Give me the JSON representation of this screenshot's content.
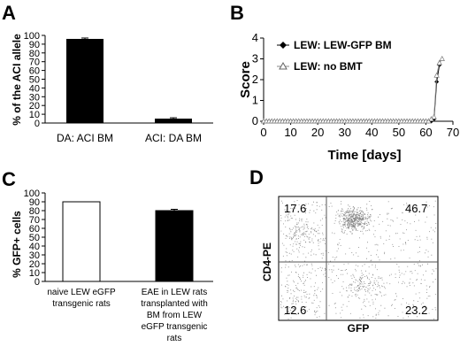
{
  "panel_labels": {
    "a": "A",
    "b": "B",
    "c": "C",
    "d": "D"
  },
  "chart_data": [
    {
      "panel": "A",
      "type": "bar",
      "ylabel": "% of the ACI allele",
      "ylim": [
        0,
        100
      ],
      "yticks": [
        0,
        10,
        20,
        30,
        40,
        50,
        60,
        70,
        80,
        90,
        100
      ],
      "categories": [
        "DA: ACI BM",
        "ACI: DA BM"
      ],
      "values": [
        96,
        5
      ],
      "errors": [
        1,
        1
      ],
      "colors": [
        "#000000",
        "#000000"
      ]
    },
    {
      "panel": "B",
      "type": "line",
      "ylabel": "Score",
      "xlabel": "Time [days]",
      "xlim": [
        0,
        70
      ],
      "ylim": [
        0,
        4
      ],
      "xticks": [
        0,
        10,
        20,
        30,
        40,
        50,
        60,
        70
      ],
      "yticks": [
        0,
        1,
        2,
        3,
        4
      ],
      "legend_position": "top-right",
      "series": [
        {
          "name": "LEW: LEW-GFP BM",
          "marker": "filled-diamond",
          "color": "#000000",
          "x": [
            0,
            1,
            2,
            3,
            4,
            5,
            6,
            7,
            8,
            9,
            10,
            11,
            12,
            13,
            14,
            15,
            16,
            17,
            18,
            19,
            20,
            21,
            22,
            23,
            24,
            25,
            26,
            27,
            28,
            29,
            30,
            31,
            32,
            33,
            34,
            35,
            36,
            37,
            38,
            39,
            40,
            41,
            42,
            43,
            44,
            45,
            46,
            47,
            48,
            49,
            50,
            51,
            52,
            53,
            54,
            55,
            56,
            57,
            58,
            59,
            60,
            61,
            62,
            63,
            64,
            65
          ],
          "y": [
            0,
            0,
            0,
            0,
            0,
            0,
            0,
            0,
            0,
            0,
            0,
            0,
            0,
            0,
            0,
            0,
            0,
            0,
            0,
            0,
            0,
            0,
            0,
            0,
            0,
            0,
            0,
            0,
            0,
            0,
            0,
            0,
            0,
            0,
            0,
            0,
            0,
            0,
            0,
            0,
            0,
            0,
            0,
            0,
            0,
            0,
            0,
            0,
            0,
            0,
            0,
            0,
            0,
            0,
            0,
            0,
            0,
            0,
            0,
            0,
            0,
            0,
            0,
            0.1,
            1.9,
            2.7
          ]
        },
        {
          "name": "LEW: no BMT",
          "marker": "open-triangle",
          "color": "#888888",
          "x": [
            0,
            1,
            2,
            3,
            4,
            5,
            6,
            7,
            8,
            9,
            10,
            11,
            12,
            13,
            14,
            15,
            16,
            17,
            18,
            19,
            20,
            21,
            22,
            23,
            24,
            25,
            26,
            27,
            28,
            29,
            30,
            31,
            32,
            33,
            34,
            35,
            36,
            37,
            38,
            39,
            40,
            41,
            42,
            43,
            44,
            45,
            46,
            47,
            48,
            49,
            50,
            51,
            52,
            53,
            54,
            55,
            56,
            57,
            58,
            59,
            60,
            61,
            62,
            63,
            64,
            65,
            66
          ],
          "y": [
            0,
            0,
            0,
            0,
            0,
            0,
            0,
            0,
            0,
            0,
            0,
            0,
            0,
            0,
            0,
            0,
            0,
            0,
            0,
            0,
            0,
            0,
            0,
            0,
            0,
            0,
            0,
            0,
            0,
            0,
            0,
            0,
            0,
            0,
            0,
            0,
            0,
            0,
            0,
            0,
            0,
            0,
            0,
            0,
            0,
            0,
            0,
            0,
            0,
            0,
            0,
            0,
            0,
            0,
            0,
            0,
            0,
            0,
            0,
            0,
            0,
            0,
            0.1,
            0.2,
            2.2,
            2.8,
            3.0
          ]
        }
      ]
    },
    {
      "panel": "C",
      "type": "bar",
      "ylabel": "% GFP+ cells",
      "ylim": [
        0,
        100
      ],
      "yticks": [
        0,
        10,
        20,
        30,
        40,
        50,
        60,
        70,
        80,
        90,
        100
      ],
      "categories": [
        [
          "naive LEW eGFP",
          "transgenic rats"
        ],
        [
          "EAE in LEW rats",
          "transplanted with",
          "BM from LEW",
          "eGFP transgenic",
          "rats"
        ]
      ],
      "values": [
        90,
        80
      ],
      "errors": [
        0,
        1.5
      ],
      "fills": [
        "#ffffff",
        "#000000"
      ]
    },
    {
      "panel": "D",
      "type": "scatter",
      "xlabel": "GFP",
      "ylabel": "CD4-PE",
      "quadrant_values": {
        "upper_left": "17.6",
        "upper_right": "46.7",
        "lower_left": "12.6",
        "lower_right": "23.2"
      },
      "quadrant_percent": {
        "upper_left": 17.6,
        "upper_right": 46.7,
        "lower_left": 12.6,
        "lower_right": 23.2
      }
    }
  ]
}
